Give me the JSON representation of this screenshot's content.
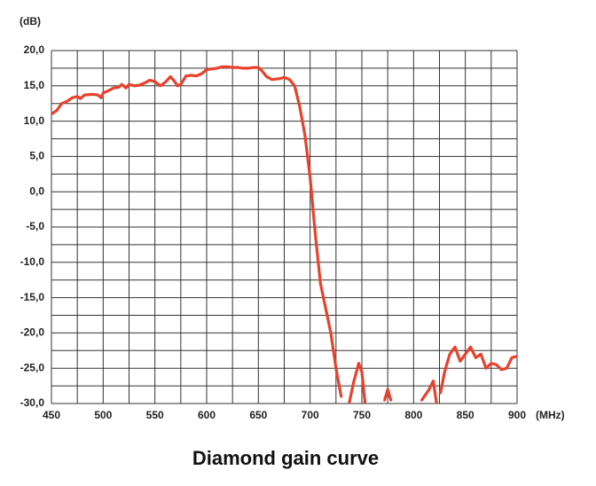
{
  "chart_data": {
    "type": "line",
    "y_label": "(dB)",
    "x_label": "(MHz)",
    "caption": "Diamond gain curve",
    "xlim": [
      450,
      900
    ],
    "ylim": [
      -30,
      20
    ],
    "xticks": [
      450,
      500,
      550,
      600,
      650,
      700,
      750,
      800,
      850,
      900
    ],
    "yticks": [
      {
        "value": 20,
        "label": "20,0"
      },
      {
        "value": 15,
        "label": "15,0"
      },
      {
        "value": 10,
        "label": "10,0"
      },
      {
        "value": 5,
        "label": "5,0"
      },
      {
        "value": 0,
        "label": "0,0"
      },
      {
        "value": -5,
        "label": "-5,0"
      },
      {
        "value": -10,
        "label": "-10,0"
      },
      {
        "value": -15,
        "label": "-15,0"
      },
      {
        "value": -20,
        "label": "-20,0"
      },
      {
        "value": -25,
        "label": "-25,0"
      },
      {
        "value": -30,
        "label": "-30,0"
      }
    ],
    "xgrid": [
      450,
      475,
      500,
      525,
      550,
      575,
      600,
      625,
      650,
      675,
      700,
      725,
      750,
      775,
      800,
      825,
      850,
      875,
      900
    ],
    "ygrid": [
      20,
      17.5,
      15,
      12.5,
      10,
      7.5,
      5,
      2.5,
      0,
      -2.5,
      -5,
      -7.5,
      -10,
      -12.5,
      -15,
      -17.5,
      -20,
      -22.5,
      -25,
      -27.5,
      -30
    ],
    "grid": true,
    "color": "#e8412c",
    "x": [
      450,
      455,
      460,
      465,
      470,
      475,
      478,
      482,
      490,
      495,
      498,
      500,
      505,
      510,
      515,
      518,
      522,
      525,
      530,
      535,
      540,
      545,
      550,
      555,
      560,
      565,
      568,
      572,
      575,
      580,
      585,
      590,
      595,
      600,
      605,
      610,
      615,
      620,
      625,
      630,
      635,
      640,
      645,
      650,
      653,
      658,
      663,
      670,
      675,
      680,
      685,
      690,
      695,
      700,
      705,
      710,
      715,
      720,
      725,
      730,
      733,
      738,
      742,
      747,
      750,
      753,
      760,
      772,
      775,
      778,
      782,
      800,
      808,
      815,
      819,
      822,
      824,
      826,
      830,
      835,
      840,
      845,
      850,
      855,
      860,
      865,
      870,
      875,
      880,
      885,
      890,
      895,
      900
    ],
    "values": [
      11.0,
      11.5,
      12.5,
      12.8,
      13.3,
      13.5,
      13.2,
      13.7,
      13.8,
      13.7,
      13.3,
      14.0,
      14.3,
      14.7,
      14.8,
      15.2,
      14.7,
      15.2,
      15.0,
      15.1,
      15.4,
      15.8,
      15.6,
      15.0,
      15.5,
      16.3,
      15.8,
      15.0,
      15.2,
      16.4,
      16.5,
      16.4,
      16.7,
      17.3,
      17.4,
      17.5,
      17.7,
      17.7,
      17.6,
      17.6,
      17.5,
      17.5,
      17.6,
      17.6,
      17.2,
      16.3,
      15.9,
      16.0,
      16.2,
      15.9,
      15.0,
      12.0,
      8.0,
      2.0,
      -6.0,
      -13.0,
      -16.5,
      -20.0,
      -25.0,
      -29.0,
      null,
      -29.8,
      -27.0,
      -24.3,
      -25.5,
      -29.8,
      null,
      -29.5,
      -28.0,
      -29.5,
      null,
      null,
      -29.5,
      -28.0,
      -26.8,
      -29.8,
      null,
      -28.5,
      -25.5,
      -23.0,
      -22.0,
      -24.0,
      -23.0,
      -22.0,
      -23.5,
      -23.0,
      -25.0,
      -24.3,
      -24.5,
      -25.2,
      -25.0,
      -23.5,
      -23.3
    ]
  }
}
